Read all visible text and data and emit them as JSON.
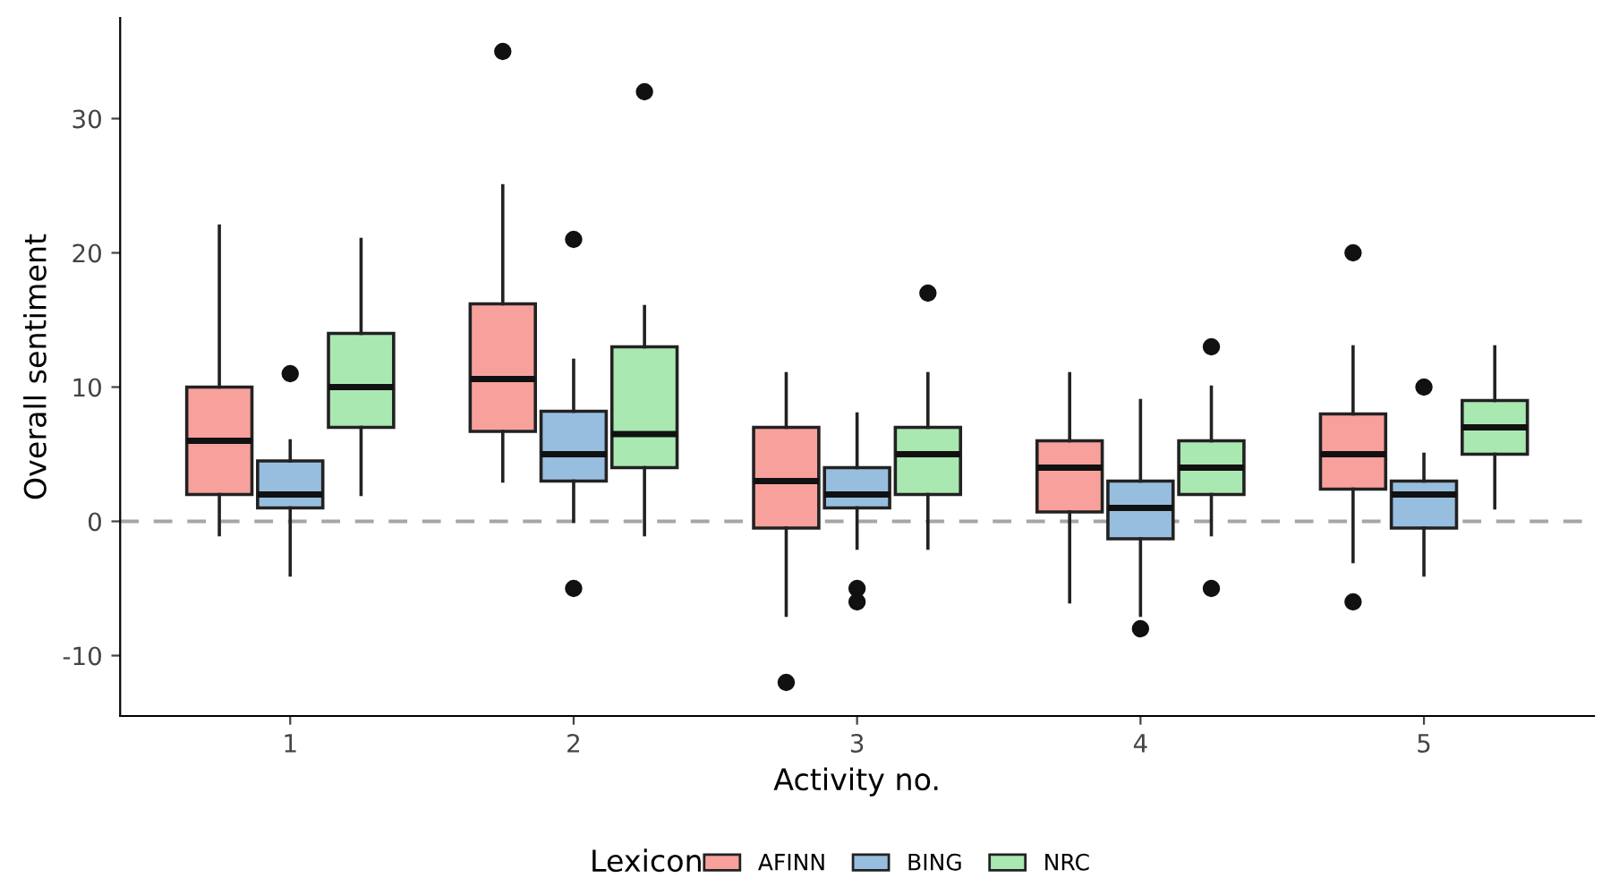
{
  "chart_data": {
    "type": "box",
    "xlabel": "Activity no.",
    "ylabel": "Overall sentiment",
    "legend_title": "Lexicon",
    "legend": "bottom",
    "grid": false,
    "categories": [
      "1",
      "2",
      "3",
      "4",
      "5"
    ],
    "ylim": [
      -14.5,
      37.5
    ],
    "yticks": [
      -10,
      0,
      10,
      20,
      30
    ],
    "ref_lines": [
      {
        "axis": "y",
        "value": 0,
        "color": "#a6a6a6",
        "line_style": "dashed"
      }
    ],
    "series": [
      {
        "name": "AFINN",
        "color": "#f8a19c",
        "boxes": [
          {
            "low": -1,
            "q1": 2,
            "median": 6,
            "q3": 10,
            "high": 22
          },
          {
            "low": 3,
            "q1": 6.7,
            "median": 10.6,
            "q3": 16.2,
            "high": 25,
            "outliers": [
              35
            ]
          },
          {
            "low": -7,
            "q1": -0.5,
            "median": 3,
            "q3": 7,
            "high": 11,
            "outliers": [
              -12
            ]
          },
          {
            "low": -6,
            "q1": 0.7,
            "median": 4,
            "q3": 6,
            "high": 11
          },
          {
            "low": -3,
            "q1": 2.4,
            "median": 5,
            "q3": 8,
            "high": 13,
            "outliers": [
              20,
              -6
            ]
          }
        ]
      },
      {
        "name": "BING",
        "color": "#98bedf",
        "boxes": [
          {
            "low": -4,
            "q1": 1,
            "median": 2,
            "q3": 4.5,
            "high": 6,
            "outliers": [
              11
            ]
          },
          {
            "low": 0,
            "q1": 3,
            "median": 5,
            "q3": 8.2,
            "high": 12,
            "outliers": [
              21,
              -5
            ]
          },
          {
            "low": -2,
            "q1": 1,
            "median": 2,
            "q3": 4,
            "high": 8,
            "outliers": [
              -5,
              -6
            ]
          },
          {
            "low": -7,
            "q1": -1.3,
            "median": 1,
            "q3": 3,
            "high": 9,
            "outliers": [
              -8
            ]
          },
          {
            "low": -4,
            "q1": -0.5,
            "median": 2,
            "q3": 3,
            "high": 5,
            "outliers": [
              10
            ]
          }
        ]
      },
      {
        "name": "NRC",
        "color": "#aae8b2",
        "boxes": [
          {
            "low": 2,
            "q1": 7,
            "median": 10,
            "q3": 14,
            "high": 21
          },
          {
            "low": -1,
            "q1": 4,
            "median": 6.5,
            "q3": 13,
            "high": 16,
            "outliers": [
              32
            ]
          },
          {
            "low": -2,
            "q1": 2,
            "median": 5,
            "q3": 7,
            "high": 11,
            "outliers": [
              17
            ]
          },
          {
            "low": -1,
            "q1": 2,
            "median": 4,
            "q3": 6,
            "high": 10,
            "outliers": [
              13,
              -5
            ]
          },
          {
            "low": 1,
            "q1": 5,
            "median": 7,
            "q3": 9,
            "high": 13
          }
        ]
      }
    ]
  }
}
